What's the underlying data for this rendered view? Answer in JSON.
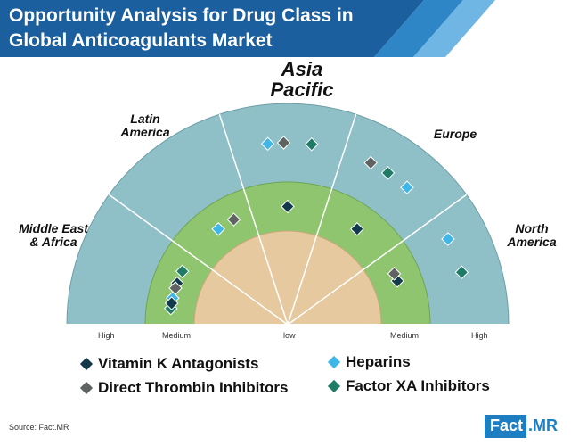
{
  "header": {
    "title_line1": "Opportunity Analysis for Drug Class in",
    "title_line2": "Global Anticoagulants Market"
  },
  "regions": {
    "asia_pacific_1": "Asia",
    "asia_pacific_2": "Pacific",
    "latin_america_1": "Latin",
    "latin_america_2": "America",
    "europe": "Europe",
    "mea_1": "Middle East",
    "mea_2": "& Africa",
    "north_america_1": "North",
    "north_america_2": "America"
  },
  "scale": {
    "left_high": "High",
    "left_medium": "Medium",
    "center_low": "low",
    "right_medium": "Medium",
    "right_high": "High"
  },
  "legend": {
    "vka": "Vitamin K Antagonists",
    "dti": "Direct Thrombin Inhibitors",
    "heparins": "Heparins",
    "fxa": "Factor XA Inhibitors"
  },
  "colors": {
    "vka": "#123a4a",
    "dti": "#5f6463",
    "heparins": "#3fb6e8",
    "fxa": "#1f7a66",
    "outer_ring": "#8fbfc7",
    "middle_ring": "#8fc56f",
    "inner_ring": "#e7c9a0",
    "header": "#1b5f9e"
  },
  "markers": [
    {
      "series": "heparins",
      "band": "high",
      "region": "asia_pacific",
      "side": 0.25
    },
    {
      "series": "fxa",
      "band": "high",
      "region": "asia_pacific",
      "side": 0.8
    },
    {
      "series": "dti",
      "band": "high",
      "region": "asia_pacific",
      "side": 0.45
    },
    {
      "series": "dti",
      "band": "high",
      "region": "europe",
      "side": 0.15
    },
    {
      "series": "fxa",
      "band": "high",
      "region": "europe",
      "side": 0.4
    },
    {
      "series": "heparins",
      "band": "high",
      "region": "europe",
      "side": 0.7
    },
    {
      "series": "heparins",
      "band": "medium",
      "region": "latin_america",
      "side": 0.5
    },
    {
      "series": "dti",
      "band": "medium",
      "region": "latin_america",
      "side": 0.85
    },
    {
      "series": "fxa",
      "band": "medium",
      "region": "mea",
      "side": 0.85
    },
    {
      "series": "heparins",
      "band": "medium",
      "region": "mea",
      "side": 0.3
    },
    {
      "series": "vka",
      "band": "medium",
      "region": "mea",
      "side": 0.6
    },
    {
      "series": "dti",
      "band": "medium",
      "region": "mea",
      "side": 0.5
    },
    {
      "series": "fxa",
      "band": "medium",
      "region": "mea",
      "side": 0.1
    },
    {
      "series": "vka",
      "band": "medium",
      "region": "mea",
      "side": 0.2
    },
    {
      "series": "vka",
      "band": "medium",
      "region": "asia_pacific",
      "side": 0.5
    },
    {
      "series": "vka",
      "band": "medium",
      "region": "europe",
      "side": 0.5
    },
    {
      "series": "fxa",
      "band": "high",
      "region": "north_america",
      "side": 0.55
    },
    {
      "series": "heparins",
      "band": "high",
      "region": "north_america",
      "side": 0.1
    },
    {
      "series": "vka",
      "band": "medium",
      "region": "north_america",
      "side": 0.35
    },
    {
      "series": "dti",
      "band": "medium",
      "region": "north_america",
      "side": 0.2
    }
  ]
}
